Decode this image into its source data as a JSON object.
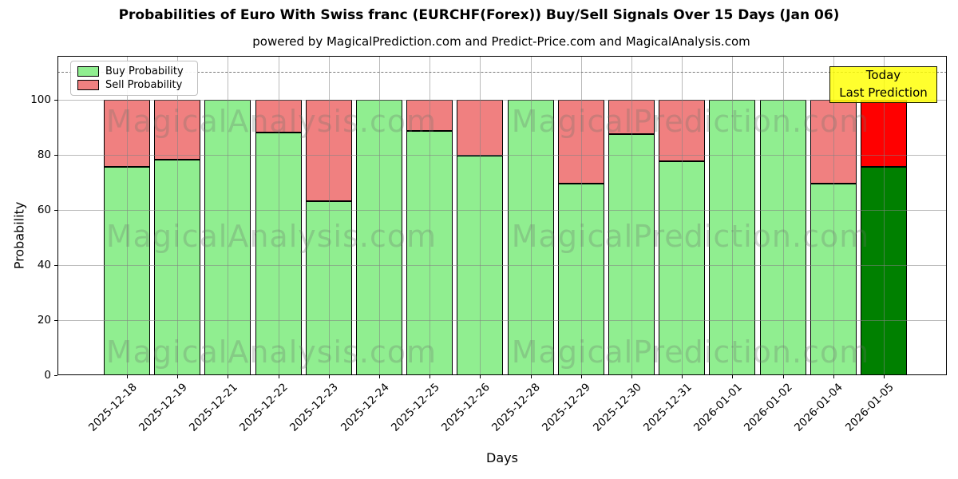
{
  "title": "Probabilities of Euro With Swiss franc (EURCHF(Forex)) Buy/Sell Signals Over 15 Days (Jan 06)",
  "subtitle": "powered by MagicalPrediction.com and Predict-Price.com and MagicalAnalysis.com",
  "watermarks": {
    "left_text": "MagicalAnalysis.com",
    "right_text": "MagicalPrediction.com"
  },
  "annotation": {
    "line1": "Today",
    "line2": "Last Prediction",
    "bg_color": "#ffff00"
  },
  "legend": {
    "items": [
      {
        "label": "Buy Probability",
        "color": "#90ee90"
      },
      {
        "label": "Sell Probability",
        "color": "#f08080"
      }
    ]
  },
  "chart_data": {
    "type": "bar",
    "stacked": true,
    "title": "Probabilities of Euro With Swiss franc (EURCHF(Forex)) Buy/Sell Signals Over 15 Days (Jan 06)",
    "subtitle": "powered by MagicalPrediction.com and Predict-Price.com and MagicalAnalysis.com",
    "xlabel": "Days",
    "ylabel": "Probability",
    "ylim": [
      0,
      115.8
    ],
    "yticks": [
      0,
      20,
      40,
      60,
      80,
      100
    ],
    "grid": true,
    "dashed_hline_y": 110,
    "legend_position": "upper left",
    "categories": [
      "2025-12-18",
      "2025-12-19",
      "2025-12-21",
      "2025-12-22",
      "2025-12-23",
      "2025-12-24",
      "2025-12-25",
      "2025-12-26",
      "2025-12-28",
      "2025-12-29",
      "2025-12-30",
      "2025-12-31",
      "2026-01-01",
      "2026-01-02",
      "2026-01-04",
      "2026-01-05"
    ],
    "series": [
      {
        "name": "Buy Probability",
        "values": [
          75.5,
          78,
          100,
          88,
          63,
          100,
          88.5,
          79.5,
          100,
          69.5,
          87.5,
          77.5,
          100,
          100,
          69.5,
          75.5
        ],
        "color": "#90ee90",
        "last_bar_color": "#008000"
      },
      {
        "name": "Sell Probability",
        "values": [
          24.5,
          22,
          0,
          12,
          37,
          0,
          11.5,
          20.5,
          0,
          30.5,
          12.5,
          22.5,
          0,
          0,
          30.5,
          24.5
        ],
        "color": "#f08080",
        "last_bar_color": "#ff0000"
      }
    ],
    "bar_edge_color": "#000000"
  }
}
